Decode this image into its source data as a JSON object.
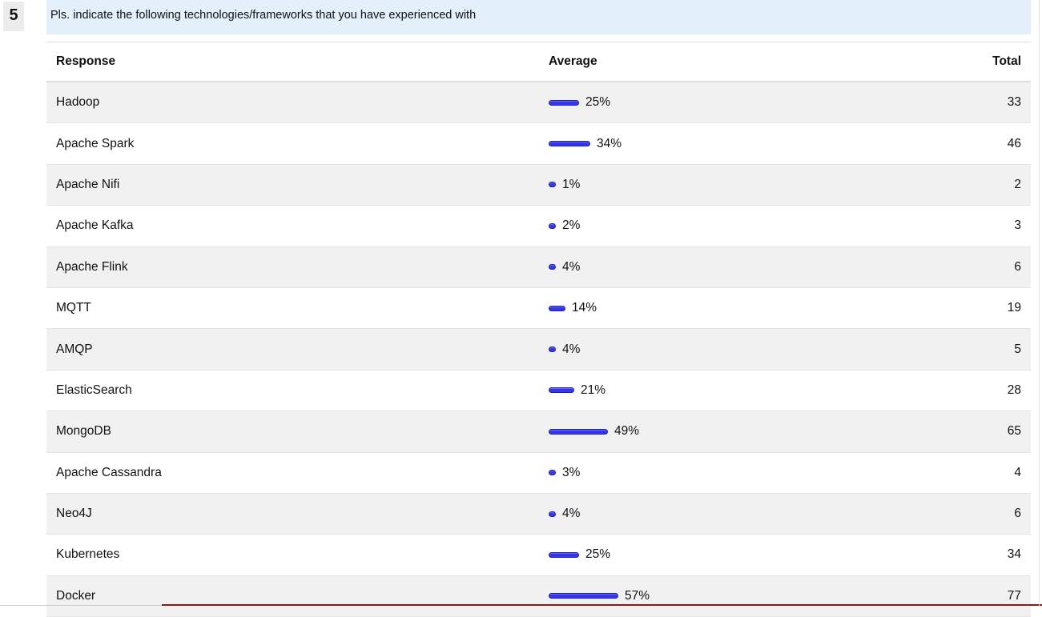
{
  "question": {
    "number": "5",
    "text": "Pls. indicate the following technologies/frameworks that you have experienced with"
  },
  "table": {
    "headers": {
      "response": "Response",
      "average": "Average",
      "total": "Total"
    },
    "rows": [
      {
        "response": "Hadoop",
        "average": "25%",
        "total": "33",
        "fraction": 0.25
      },
      {
        "response": "Apache Spark",
        "average": "34%",
        "total": "46",
        "fraction": 0.34
      },
      {
        "response": "Apache Nifi",
        "average": "1%",
        "total": "2",
        "fraction": 0.01
      },
      {
        "response": "Apache Kafka",
        "average": "2%",
        "total": "3",
        "fraction": 0.02
      },
      {
        "response": "Apache Flink",
        "average": "4%",
        "total": "6",
        "fraction": 0.04
      },
      {
        "response": "MQTT",
        "average": "14%",
        "total": "19",
        "fraction": 0.14
      },
      {
        "response": "AMQP",
        "average": "4%",
        "total": "5",
        "fraction": 0.04
      },
      {
        "response": "ElasticSearch",
        "average": "21%",
        "total": "28",
        "fraction": 0.21
      },
      {
        "response": "MongoDB",
        "average": "49%",
        "total": "65",
        "fraction": 0.49
      },
      {
        "response": "Apache Cassandra",
        "average": "3%",
        "total": "4",
        "fraction": 0.03
      },
      {
        "response": "Neo4J",
        "average": "4%",
        "total": "6",
        "fraction": 0.04
      },
      {
        "response": "Kubernetes",
        "average": "25%",
        "total": "34",
        "fraction": 0.25
      },
      {
        "response": "Docker",
        "average": "57%",
        "total": "77",
        "fraction": 0.57
      }
    ]
  },
  "colors": {
    "bar": "#3535ec",
    "question_bg": "#e3effa",
    "row_alt_bg": "#f1f1f1"
  }
}
